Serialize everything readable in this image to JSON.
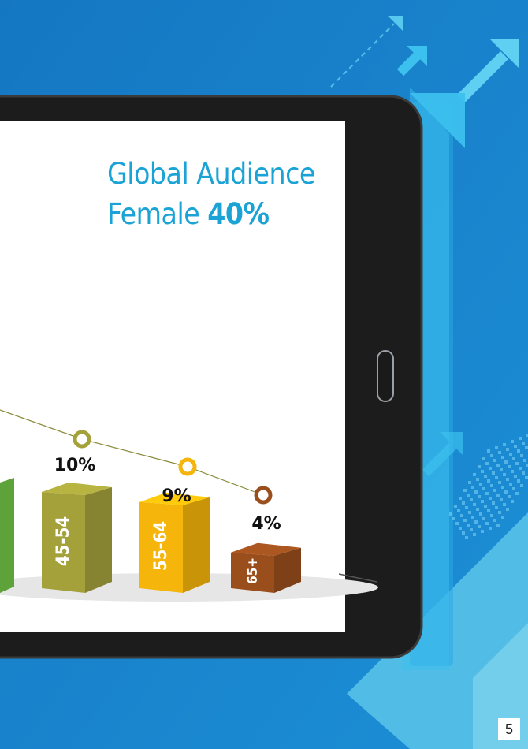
{
  "header": {
    "title_line1": "Global Audience",
    "title_prefix": "Female ",
    "title_value": "40%"
  },
  "page_number": "5",
  "colors": {
    "background": "#1b7fc7",
    "accent": "#1aa3d4",
    "tablet": "#1c1c1c",
    "trend_line": "#8a8a3a"
  },
  "chart_data": {
    "type": "bar",
    "title": "Global Audience Female 40%",
    "categories": [
      "45-54",
      "55-64",
      "65+"
    ],
    "values": [
      10,
      9,
      4
    ],
    "value_labels": [
      "10%",
      "9%",
      "4%"
    ],
    "bar_colors": [
      "#a4a13b",
      "#f5b50a",
      "#9a4e1c"
    ],
    "partial_bar_color": "#5ea23a",
    "trend_line": true,
    "grid": false,
    "legend": "none"
  }
}
